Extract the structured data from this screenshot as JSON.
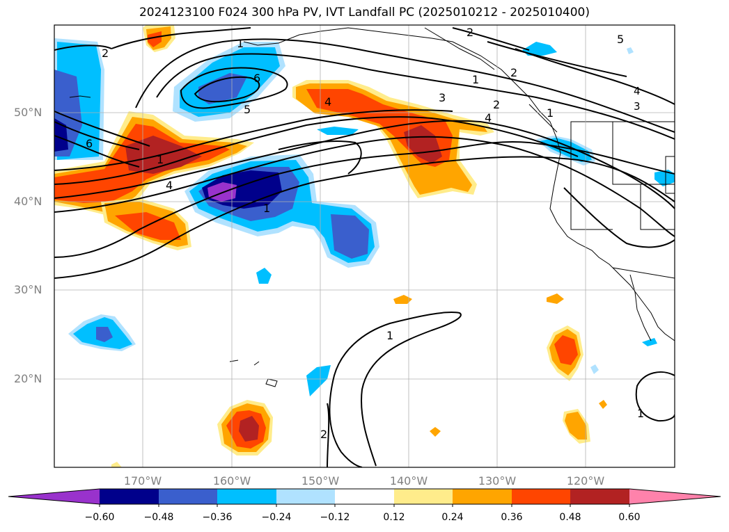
{
  "title": "2024123100 F024 300 hPa PV, IVT Landfall PC (2025010212 - 2025010400)",
  "map": {
    "lat_labels": [
      "50°N",
      "40°N",
      "30°N",
      "20°N"
    ],
    "lon_labels": [
      "170°W",
      "160°W",
      "150°W",
      "140°W",
      "130°W",
      "120°W"
    ],
    "contour_labels": [
      "1",
      "1",
      "1",
      "1",
      "1",
      "2",
      "2",
      "2",
      "2",
      "3",
      "4",
      "4",
      "4",
      "5",
      "5",
      "6",
      "6",
      "1",
      "2",
      "1"
    ]
  },
  "colorbar": {
    "ticks": [
      "−0.60",
      "−0.48",
      "−0.36",
      "−0.24",
      "−0.12",
      "0.12",
      "0.24",
      "0.36",
      "0.48",
      "0.60"
    ],
    "colors": [
      "#9932cc",
      "#00008b",
      "#3a5fcd",
      "#00bfff",
      "#b0e2ff",
      "#ffffff",
      "#ffec8b",
      "#ffa500",
      "#ff4500",
      "#b22222",
      "#ff82ab"
    ]
  }
}
